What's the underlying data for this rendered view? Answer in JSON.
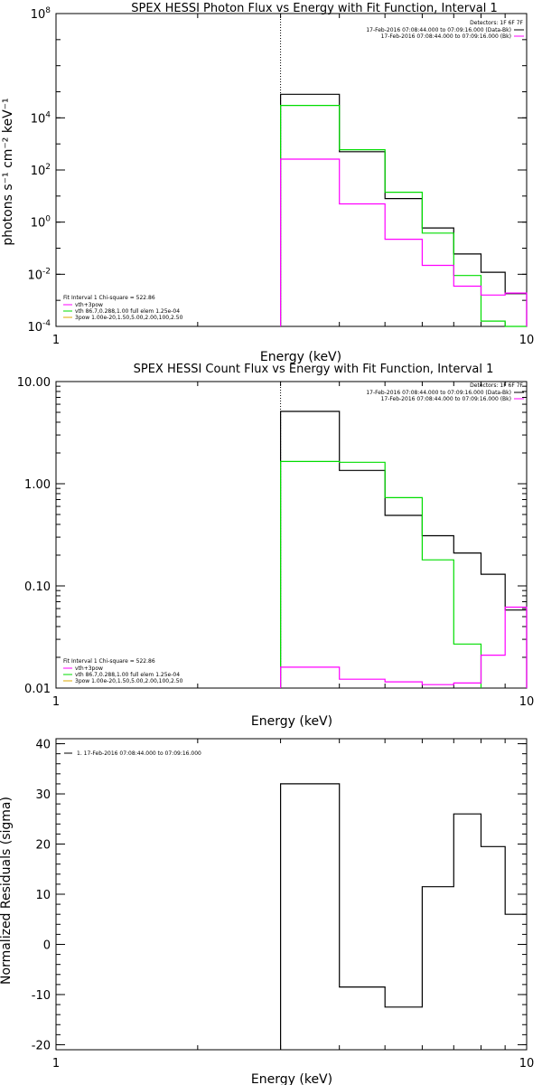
{
  "chart_data": [
    {
      "type": "line",
      "title": "SPEX HESSI Photon Flux vs Energy with Fit Function, Interval 1",
      "xlabel": "Energy (keV)",
      "ylabel": "photons s⁻¹ cm⁻² keV⁻¹",
      "x_scale": "log",
      "y_scale": "log",
      "xlim": [
        1,
        10
      ],
      "ylim": [
        0.0001,
        100000000
      ],
      "x_ticks": [
        {
          "v": 1,
          "label": "1"
        },
        {
          "v": 10,
          "label": "10"
        }
      ],
      "y_ticks": [
        {
          "v": 0.0001,
          "base": "10",
          "exp": "-4"
        },
        {
          "v": 0.01,
          "base": "10",
          "exp": "-2"
        },
        {
          "v": 1,
          "base": "10",
          "exp": "0"
        },
        {
          "v": 100,
          "base": "10",
          "exp": "2"
        },
        {
          "v": 10000,
          "base": "10",
          "exp": "4"
        },
        {
          "v": 100000000,
          "base": "10",
          "exp": "8"
        }
      ],
      "marker_line_x": 3.0,
      "legend_top": [
        "Detectors: 1F 6F 7F",
        "17-Feb-2016 07:08:44.000 to 07:09:16.000 (Data-Bk)",
        "17-Feb-2016 07:08:44.000 to 07:09:16.000 (Bk)"
      ],
      "legend_bottom": [
        "Fit Interval  1    Chi-square = 522.86",
        "vth+3pow",
        "vth 86.7,0.288,1.00  full elem 1.25e-04",
        "3pow 1.00e-20,1.50,5.00,2.00,100,2.50"
      ],
      "series": [
        {
          "color": "#000000",
          "edges": [
            3.0,
            4.0,
            5.0,
            6.0,
            7.0,
            8.0,
            9.0,
            10.0
          ],
          "values": [
            80000,
            500,
            8,
            0.6,
            0.06,
            0.012,
            0.0018
          ]
        },
        {
          "color": "#00dd00",
          "edges": [
            3.0,
            4.0,
            5.0,
            6.0,
            7.0,
            8.0,
            9.0,
            10.0
          ],
          "values": [
            30000,
            600,
            14,
            0.38,
            0.009,
            0.00016,
            3e-05
          ]
        },
        {
          "color": "#ff00ff",
          "edges": [
            3.0,
            4.0,
            5.0,
            6.0,
            7.0,
            8.0,
            9.0,
            10.0
          ],
          "values": [
            260,
            5,
            0.22,
            0.022,
            0.0035,
            0.0016,
            0.0019
          ]
        }
      ]
    },
    {
      "type": "line",
      "title": "SPEX HESSI Count Flux vs Energy with Fit Function, Interval 1",
      "xlabel": "Energy (keV)",
      "ylabel": "",
      "x_scale": "log",
      "y_scale": "log",
      "xlim": [
        1,
        10
      ],
      "ylim": [
        0.01,
        10
      ],
      "x_ticks": [
        {
          "v": 1,
          "label": "1"
        },
        {
          "v": 10,
          "label": "10"
        }
      ],
      "y_ticks": [
        {
          "v": 0.01,
          "label": "0.01"
        },
        {
          "v": 0.1,
          "label": "0.10"
        },
        {
          "v": 1,
          "label": "1.00"
        },
        {
          "v": 10,
          "label": "10.00"
        }
      ],
      "marker_line_x": 3.0,
      "legend_top": [
        "Detectors: 1F 6F 7F",
        "17-Feb-2016 07:08:44.000 to 07:09:16.000 (Data-Bk)",
        "17-Feb-2016 07:08:44.000 to 07:09:16.000 (Bk)"
      ],
      "legend_bottom": [
        "Fit Interval  1    Chi-square = 522.86",
        "vth+3pow",
        "vth 86.7,0.288,1.00  full elem 1.25e-04",
        "3pow 1.00e-20,1.50,5.00,2.00,100,2.50"
      ],
      "series": [
        {
          "color": "#000000",
          "edges": [
            3.0,
            4.0,
            5.0,
            6.0,
            7.0,
            8.0,
            9.0,
            10.0
          ],
          "values": [
            5.1,
            1.35,
            0.49,
            0.31,
            0.21,
            0.13,
            0.058
          ]
        },
        {
          "color": "#00dd00",
          "edges": [
            3.0,
            4.0,
            5.0,
            6.0,
            7.0,
            8.0
          ],
          "values": [
            1.65,
            1.62,
            0.73,
            0.18,
            0.027
          ]
        },
        {
          "color": "#ff00ff",
          "edges": [
            3.0,
            4.0,
            5.0,
            6.0,
            7.0,
            8.0,
            9.0,
            10.0
          ],
          "values": [
            0.016,
            0.0122,
            0.0115,
            0.0108,
            0.0112,
            0.021,
            0.062
          ]
        }
      ]
    },
    {
      "type": "line",
      "title": "",
      "xlabel": "Energy (keV)",
      "ylabel": "Normalized Residuals (sigma)",
      "x_scale": "log",
      "y_scale": "linear",
      "xlim": [
        1,
        10
      ],
      "ylim": [
        -21,
        41
      ],
      "x_ticks": [
        {
          "v": 1,
          "label": "1"
        },
        {
          "v": 10,
          "label": "10"
        }
      ],
      "y_ticks": [
        {
          "v": -20,
          "label": "-20"
        },
        {
          "v": -10,
          "label": "-10"
        },
        {
          "v": 0,
          "label": "0"
        },
        {
          "v": 10,
          "label": "10"
        },
        {
          "v": 20,
          "label": "20"
        },
        {
          "v": 30,
          "label": "30"
        },
        {
          "v": 40,
          "label": "40"
        }
      ],
      "legend_top": [
        "1. 17-Feb-2016 07:08:44.000 to 07:09:16.000"
      ],
      "series": [
        {
          "color": "#000000",
          "start_value": -21,
          "edges": [
            3.0,
            4.0,
            5.0,
            6.0,
            7.0,
            8.0,
            9.0,
            10.0
          ],
          "values": [
            32,
            -8.5,
            -12.5,
            11.5,
            26,
            19.5,
            6
          ]
        }
      ]
    }
  ]
}
